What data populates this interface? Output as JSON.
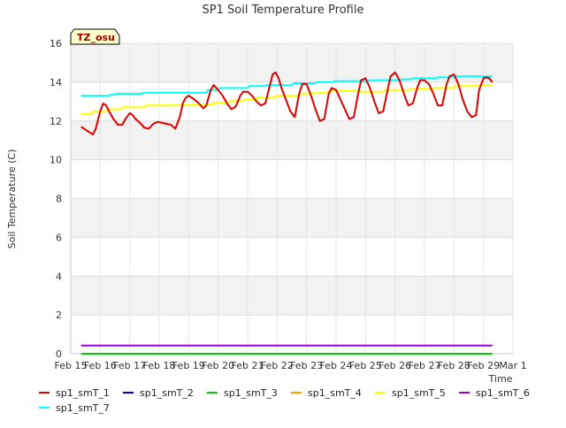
{
  "chart_data": {
    "type": "line",
    "title": "SP1 Soil Temperature Profile",
    "xlabel": "Time",
    "ylabel": "Soil Temperature (C)",
    "ylim": [
      0,
      16
    ],
    "xlim": [
      0,
      15
    ],
    "yticks": [
      0,
      2,
      4,
      6,
      8,
      10,
      12,
      14,
      16
    ],
    "x_tick_positions": [
      0,
      1,
      2,
      3,
      4,
      5,
      6,
      7,
      8,
      9,
      10,
      11,
      12,
      13,
      14,
      15
    ],
    "x_tick_labels": [
      "Feb 15",
      "Feb 16",
      "Feb 17",
      "Feb 18",
      "Feb 19",
      "Feb 20",
      "Feb 21",
      "Feb 22",
      "Feb 23",
      "Feb 24",
      "Feb 25",
      "Feb 26",
      "Feb 27",
      "Feb 28",
      "Feb 29",
      "Mar 1"
    ],
    "x_unit": "days since Feb 15",
    "badge": "TZ_osu",
    "grid": "horizontal bands",
    "legend_position": "bottom",
    "series": [
      {
        "name": "sp1_smT_1",
        "color": "#dd0000",
        "x": [
          0.35,
          0.55,
          0.75,
          0.85,
          1.0,
          1.1,
          1.2,
          1.3,
          1.45,
          1.6,
          1.75,
          1.85,
          2.0,
          2.1,
          2.2,
          2.35,
          2.5,
          2.65,
          2.8,
          2.95,
          3.1,
          3.25,
          3.4,
          3.55,
          3.7,
          3.8,
          3.9,
          4.0,
          4.1,
          4.2,
          4.35,
          4.5,
          4.6,
          4.75,
          4.85,
          5.0,
          5.15,
          5.3,
          5.45,
          5.6,
          5.75,
          5.85,
          6.0,
          6.15,
          6.3,
          6.45,
          6.6,
          6.75,
          6.85,
          6.95,
          7.05,
          7.15,
          7.3,
          7.45,
          7.6,
          7.75,
          7.85,
          8.0,
          8.15,
          8.3,
          8.45,
          8.6,
          8.75,
          8.85,
          9.0,
          9.15,
          9.3,
          9.45,
          9.6,
          9.75,
          9.85,
          10.0,
          10.15,
          10.3,
          10.45,
          10.6,
          10.75,
          10.85,
          11.0,
          11.15,
          11.3,
          11.45,
          11.6,
          11.75,
          11.85,
          12.0,
          12.15,
          12.3,
          12.45,
          12.6,
          12.75,
          12.85,
          13.0,
          13.15,
          13.3,
          13.45,
          13.6,
          13.75,
          13.85,
          14.0,
          14.1,
          14.2,
          14.3
        ],
        "values": [
          11.7,
          11.5,
          11.3,
          11.6,
          12.5,
          12.9,
          12.8,
          12.5,
          12.1,
          11.8,
          11.8,
          12.1,
          12.4,
          12.3,
          12.1,
          11.9,
          11.65,
          11.6,
          11.85,
          11.95,
          11.9,
          11.85,
          11.8,
          11.6,
          12.2,
          12.9,
          13.2,
          13.3,
          13.2,
          13.1,
          12.9,
          12.65,
          12.8,
          13.6,
          13.85,
          13.6,
          13.3,
          12.9,
          12.6,
          12.75,
          13.3,
          13.5,
          13.5,
          13.3,
          13.0,
          12.8,
          12.9,
          13.8,
          14.4,
          14.5,
          14.2,
          13.7,
          13.1,
          12.5,
          12.2,
          13.4,
          13.9,
          13.9,
          13.3,
          12.6,
          12.0,
          12.1,
          13.4,
          13.7,
          13.6,
          13.1,
          12.6,
          12.1,
          12.2,
          13.4,
          14.1,
          14.2,
          13.7,
          13.0,
          12.4,
          12.5,
          13.6,
          14.3,
          14.5,
          14.1,
          13.4,
          12.8,
          12.9,
          13.7,
          14.1,
          14.1,
          13.9,
          13.4,
          12.8,
          12.8,
          13.9,
          14.3,
          14.4,
          13.9,
          13.1,
          12.5,
          12.2,
          12.3,
          13.6,
          14.2,
          14.25,
          14.2,
          14.0
        ]
      },
      {
        "name": "sp1_smT_2",
        "color": "#0000cc",
        "x": [],
        "values": []
      },
      {
        "name": "sp1_smT_3",
        "color": "#00cc00",
        "x": [
          0.35,
          14.3
        ],
        "values": [
          0.0,
          0.0
        ]
      },
      {
        "name": "sp1_smT_4",
        "color": "#ff9900",
        "x": [],
        "values": []
      },
      {
        "name": "sp1_smT_5",
        "color": "#ffff00",
        "x": [
          0.35,
          0.7,
          0.75,
          1.2,
          1.25,
          1.7,
          1.75,
          2.5,
          2.55,
          3.5,
          3.55,
          4.8,
          4.85,
          5.4,
          5.45,
          5.85,
          5.9,
          6.3,
          6.35,
          6.9,
          6.95,
          7.7,
          7.75,
          8.7,
          8.75,
          9.7,
          9.75,
          10.6,
          10.65,
          11.5,
          11.55,
          12.3,
          12.35,
          13.0,
          13.05,
          13.7,
          13.75,
          14.3
        ],
        "values": [
          12.35,
          12.35,
          12.5,
          12.5,
          12.6,
          12.6,
          12.7,
          12.7,
          12.8,
          12.8,
          12.8,
          12.85,
          12.95,
          12.95,
          13.05,
          13.05,
          13.1,
          13.1,
          13.2,
          13.2,
          13.3,
          13.3,
          13.4,
          13.45,
          13.55,
          13.55,
          13.5,
          13.5,
          13.6,
          13.6,
          13.65,
          13.65,
          13.7,
          13.7,
          13.8,
          13.8,
          13.85,
          13.85
        ]
      },
      {
        "name": "sp1_smT_6",
        "color": "#9900cc",
        "x": [
          0.35,
          14.3
        ],
        "values": [
          0.42,
          0.42
        ]
      },
      {
        "name": "sp1_smT_7",
        "color": "#00ffff",
        "x": [
          0.35,
          1.3,
          1.35,
          1.5,
          1.55,
          2.4,
          2.45,
          4.6,
          4.65,
          5.0,
          5.05,
          6.0,
          6.05,
          6.6,
          6.65,
          7.5,
          7.55,
          8.3,
          8.35,
          8.9,
          8.95,
          10.1,
          10.15,
          11.2,
          11.25,
          11.55,
          11.6,
          12.4,
          12.45,
          12.95,
          13.0,
          14.3
        ],
        "values": [
          13.3,
          13.3,
          13.35,
          13.35,
          13.4,
          13.4,
          13.45,
          13.45,
          13.6,
          13.6,
          13.7,
          13.7,
          13.8,
          13.8,
          13.85,
          13.85,
          13.95,
          13.95,
          14.0,
          14.0,
          14.05,
          14.05,
          14.1,
          14.1,
          14.15,
          14.15,
          14.2,
          14.2,
          14.25,
          14.25,
          14.3,
          14.3
        ]
      }
    ]
  }
}
